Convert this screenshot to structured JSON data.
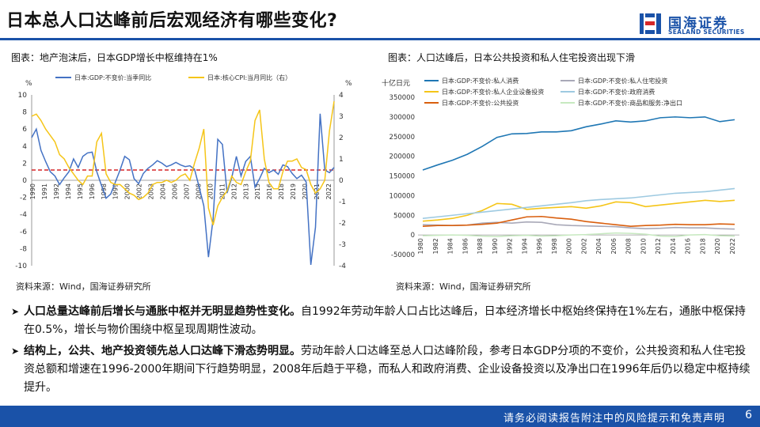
{
  "header": {
    "title": "日本总人口达峰前后宏观经济有哪些变化?",
    "logo_cn": "国海证券",
    "logo_en": "SEALAND SECURITIES"
  },
  "colors": {
    "brand": "#1a52a8",
    "gdp": "#4472c4",
    "cpi": "#f5c518",
    "dash": "#d62728"
  },
  "left_chart": {
    "caption": "图表：地产泡沫后，日本GDP增长中枢维持在1%",
    "source": "资料来源：Wind，国海证券研究所"
  },
  "right_chart": {
    "caption": "图表：人口达峰后，日本公共投资和私人住宅投资出现下滑",
    "source": "资料来源：Wind，国海证券研究所"
  },
  "chart_data": [
    {
      "type": "line",
      "title": "地产泡沫后，日本GDP增长中枢维持在1%",
      "left_unit": "%",
      "right_unit": "%",
      "ylim": [
        -10,
        10
      ],
      "y2lim": [
        -4,
        4
      ],
      "yticks": [
        10,
        8,
        6,
        4,
        2,
        0,
        -2,
        -4,
        -6,
        -8,
        -10
      ],
      "y2ticks": [
        4,
        3,
        2,
        1,
        0,
        -1,
        -2,
        -3,
        -4
      ],
      "xticks": [
        "1990",
        "1991",
        "1992",
        "1994",
        "1995",
        "1996",
        "1998",
        "1999",
        "2000",
        "2002",
        "2003",
        "2004",
        "2006",
        "2007",
        "2008",
        "2010",
        "2011",
        "2012",
        "2013",
        "2015",
        "2016",
        "2018",
        "2019",
        "2020",
        "2021",
        "2022"
      ],
      "reference_line": 1.2,
      "series": [
        {
          "name": "日本:GDP:不变价:当季同比",
          "axis": "left",
          "x": [
            1990,
            1990.5,
            1991,
            1991.5,
            1992,
            1992.5,
            1993,
            1993.5,
            1994,
            1994.5,
            1995,
            1995.5,
            1996,
            1996.5,
            1997,
            1997.5,
            1998,
            1998.5,
            1999,
            1999.5,
            2000,
            2000.5,
            2001,
            2001.5,
            2002,
            2002.5,
            2003,
            2003.5,
            2004,
            2004.5,
            2005,
            2005.5,
            2006,
            2006.5,
            2007,
            2007.5,
            2008,
            2008.5,
            2009,
            2009.5,
            2010,
            2010.5,
            2011,
            2011.5,
            2012,
            2012.5,
            2013,
            2013.5,
            2014,
            2014.5,
            2015,
            2015.5,
            2016,
            2016.5,
            2017,
            2017.5,
            2018,
            2018.5,
            2019,
            2019.5,
            2020,
            2020.5,
            2021,
            2021.5,
            2022,
            2022.5
          ],
          "values": [
            5.0,
            6.0,
            3.5,
            2.2,
            1.0,
            0.5,
            -0.5,
            0.3,
            1.0,
            2.5,
            1.5,
            2.8,
            3.2,
            3.3,
            1.0,
            -0.6,
            -2.1,
            -1.6,
            -0.2,
            1.2,
            2.8,
            2.4,
            0.2,
            -0.4,
            0.8,
            1.4,
            1.8,
            2.3,
            2.0,
            1.6,
            1.8,
            2.1,
            1.8,
            1.6,
            1.7,
            1.3,
            -0.8,
            -3.0,
            -9.0,
            -4.5,
            4.8,
            4.2,
            -1.5,
            0.3,
            2.8,
            0.5,
            2.2,
            2.8,
            -0.8,
            0.2,
            1.4,
            0.9,
            1.2,
            0.7,
            1.8,
            1.6,
            0.8,
            0.2,
            0.6,
            -0.2,
            -9.9,
            -5.5,
            7.8,
            1.2,
            0.9,
            1.5
          ]
        },
        {
          "name": "日本:核心CPI:当月同比（右）",
          "axis": "right",
          "x": [
            1990,
            1990.5,
            1991,
            1991.5,
            1992,
            1992.5,
            1993,
            1993.5,
            1994,
            1994.5,
            1995,
            1995.5,
            1996,
            1996.5,
            1997,
            1997.5,
            1998,
            1998.5,
            1999,
            1999.5,
            2000,
            2000.5,
            2001,
            2001.5,
            2002,
            2002.5,
            2003,
            2003.5,
            2004,
            2004.5,
            2005,
            2005.5,
            2006,
            2006.5,
            2007,
            2007.5,
            2008,
            2008.5,
            2009,
            2009.5,
            2010,
            2010.5,
            2011,
            2011.5,
            2012,
            2012.5,
            2013,
            2013.5,
            2014,
            2014.5,
            2015,
            2015.5,
            2016,
            2016.5,
            2017,
            2017.5,
            2018,
            2018.5,
            2019,
            2019.5,
            2020,
            2020.5,
            2021,
            2021.5,
            2022,
            2022.5
          ],
          "values": [
            3.0,
            3.1,
            2.8,
            2.4,
            2.1,
            1.8,
            1.2,
            1.0,
            0.6,
            0.3,
            0.0,
            -0.2,
            0.2,
            0.2,
            1.8,
            2.2,
            0.3,
            -0.1,
            -0.2,
            -0.2,
            -0.4,
            -0.6,
            -0.7,
            -0.9,
            -0.8,
            -0.6,
            -0.2,
            -0.1,
            -0.1,
            0.0,
            -0.1,
            0.0,
            0.2,
            0.3,
            0.0,
            0.8,
            1.5,
            2.4,
            -1.3,
            -2.1,
            -1.2,
            -0.8,
            -0.5,
            0.2,
            -0.1,
            -0.2,
            0.4,
            0.9,
            2.8,
            3.3,
            1.0,
            -0.1,
            -0.4,
            -0.4,
            0.4,
            0.9,
            0.9,
            1.0,
            0.6,
            0.5,
            -0.2,
            -0.6,
            -0.4,
            0.0,
            2.3,
            3.7
          ]
        }
      ]
    },
    {
      "type": "line",
      "title": "人口达峰后，日本公共投资和私人住宅投资出现下滑",
      "unit": "十亿日元",
      "ylim": [
        -50000,
        350000
      ],
      "yticks": [
        350000,
        300000,
        250000,
        200000,
        150000,
        100000,
        50000,
        0,
        -50000
      ],
      "ytick_labels": [
        "350000",
        "300000",
        "250000",
        "200000",
        "150000",
        "100000",
        "50000",
        "0",
        "-50000"
      ],
      "categories": [
        "1980",
        "1982",
        "1984",
        "1986",
        "1988",
        "1990",
        "1992",
        "1994",
        "1996",
        "1998",
        "2000",
        "2002",
        "2004",
        "2006",
        "2008",
        "2010",
        "2012",
        "2014",
        "2016",
        "2018",
        "2020",
        "2022"
      ],
      "series": [
        {
          "name": "日本:GDP:不变价:私人消费",
          "color": "#1f77b4",
          "values": [
            165000,
            178000,
            190000,
            205000,
            225000,
            248000,
            257000,
            258000,
            262000,
            262000,
            265000,
            275000,
            282000,
            290000,
            287000,
            290000,
            298000,
            300000,
            298000,
            300000,
            288000,
            293000
          ]
        },
        {
          "name": "日本:GDP:不变价:私人住宅投资",
          "color": "#a9a9b8",
          "values": [
            26000,
            25000,
            24000,
            25000,
            30000,
            32000,
            30000,
            33000,
            32000,
            26000,
            24000,
            23000,
            22000,
            21000,
            18000,
            16000,
            17000,
            19000,
            18000,
            18000,
            16000,
            15000
          ]
        },
        {
          "name": "日本:GDP:不变价:私人企业设备投资",
          "color": "#f5c518",
          "values": [
            35000,
            38000,
            42000,
            50000,
            62000,
            80000,
            78000,
            65000,
            68000,
            70000,
            72000,
            68000,
            74000,
            84000,
            82000,
            72000,
            76000,
            80000,
            84000,
            88000,
            85000,
            88000
          ]
        },
        {
          "name": "日本:GDP:不变价:政府消费",
          "color": "#9ecae1",
          "values": [
            42000,
            46000,
            50000,
            54000,
            58000,
            62000,
            66000,
            70000,
            74000,
            78000,
            82000,
            87000,
            90000,
            92000,
            94000,
            98000,
            102000,
            106000,
            108000,
            110000,
            114000,
            118000
          ]
        },
        {
          "name": "日本:GDP:不变价:公共投资",
          "color": "#d95f0e",
          "values": [
            22000,
            24000,
            24000,
            25000,
            27000,
            30000,
            38000,
            46000,
            47000,
            43000,
            40000,
            34000,
            30000,
            26000,
            22000,
            24000,
            25000,
            27000,
            26000,
            26000,
            28000,
            27000
          ]
        },
        {
          "name": "日本:GDP:不变价:商品和服务:净出口",
          "color": "#c7e9c0",
          "values": [
            -2000,
            -1000,
            0,
            -1000,
            -3000,
            -4000,
            -2000,
            -1000,
            -3000,
            -2000,
            0,
            1000,
            3000,
            5000,
            4000,
            2000,
            -3000,
            -4000,
            0,
            1000,
            -2000,
            -3000
          ]
        }
      ]
    }
  ],
  "bullets": [
    {
      "bold": "人口总量达峰前后增长与通胀中枢并无明显趋势性变化。",
      "text": "自1992年劳动年龄人口占比达峰后，日本经济增长中枢始终保持在1%左右，通胀中枢保持在0.5%，增长与物价围绕中枢呈现周期性波动。"
    },
    {
      "bold": "结构上，公共、地产投资领先总人口达峰下滑态势明显。",
      "text": "劳动年龄人口达峰至总人口达峰阶段，参考日本GDP分项的不变价，公共投资和私人住宅投资总额和增速在1996-2000年期间下行趋势明显，2008年后趋于平稳，而私人和政府消费、企业设备投资以及净出口在1996年后仍以稳定中枢持续提升。"
    }
  ],
  "footer": {
    "text": "请务必阅读报告附注中的风险提示和免责声明",
    "page": "6"
  }
}
